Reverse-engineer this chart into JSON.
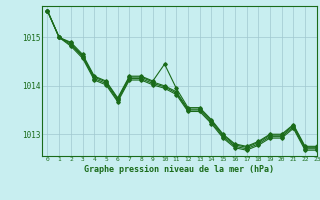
{
  "title": "Graphe pression niveau de la mer (hPa)",
  "background_color": "#c8eef0",
  "grid_color": "#a0c8d0",
  "line_color": "#1a6b1a",
  "marker_color": "#1a6b1a",
  "xlim": [
    -0.5,
    23
  ],
  "ylim": [
    1012.55,
    1015.65
  ],
  "yticks": [
    1013,
    1014,
    1015
  ],
  "xticks": [
    0,
    1,
    2,
    3,
    4,
    5,
    6,
    7,
    8,
    9,
    10,
    11,
    12,
    13,
    14,
    15,
    16,
    17,
    18,
    19,
    20,
    21,
    22,
    23
  ],
  "series": [
    [
      1015.55,
      1015.0,
      1014.9,
      1014.65,
      1014.2,
      1014.1,
      1013.75,
      1014.2,
      1014.2,
      1014.1,
      1014.45,
      1013.95,
      1013.55,
      1013.55,
      1013.3,
      1013.0,
      1012.8,
      1012.75,
      1012.85,
      1013.0,
      1013.0,
      1013.2,
      1012.75,
      1012.75
    ],
    [
      1015.55,
      1015.0,
      1014.88,
      1014.62,
      1014.18,
      1014.08,
      1013.73,
      1014.18,
      1014.18,
      1014.08,
      1014.0,
      1013.88,
      1013.52,
      1013.52,
      1013.28,
      1012.98,
      1012.78,
      1012.73,
      1012.83,
      1012.98,
      1012.98,
      1013.18,
      1012.73,
      1012.73
    ],
    [
      1015.55,
      1015.0,
      1014.85,
      1014.6,
      1014.15,
      1014.05,
      1013.7,
      1014.15,
      1014.15,
      1014.05,
      1013.98,
      1013.85,
      1013.5,
      1013.5,
      1013.25,
      1012.95,
      1012.75,
      1012.7,
      1012.8,
      1012.95,
      1012.95,
      1013.15,
      1012.7,
      1012.7
    ],
    [
      1015.55,
      1015.0,
      1014.82,
      1014.57,
      1014.12,
      1014.02,
      1013.67,
      1014.12,
      1014.12,
      1014.02,
      1013.95,
      1013.82,
      1013.47,
      1013.47,
      1013.22,
      1012.92,
      1012.72,
      1012.67,
      1012.77,
      1012.92,
      1012.92,
      1013.12,
      1012.67,
      1012.67
    ]
  ]
}
